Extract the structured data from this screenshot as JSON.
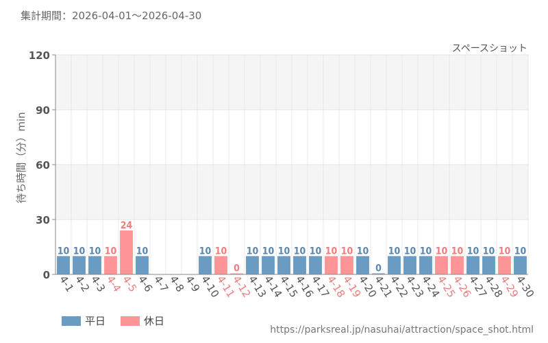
{
  "period": "集計期間：2026-04-01～2026-04-30",
  "attraction": "スペースショット",
  "source_url": "https://parksreal.jp/nasuhai/attraction/space_shot.html",
  "colors": {
    "weekday": "#6a9bc3",
    "holiday": "#fd9597",
    "holiday_text": "#f07c7e",
    "weekday_text": "#5b86ad"
  },
  "legend": {
    "weekday_label": "平日",
    "holiday_label": "休日"
  },
  "chart_data": {
    "type": "bar",
    "title": "",
    "xlabel": "",
    "ylabel": "待ち時間（分）min",
    "ylim": [
      0,
      120
    ],
    "yticks": [
      0,
      30,
      60,
      90,
      120
    ],
    "grid": true,
    "legend_position": "bottom-left",
    "categories": [
      "4-1",
      "4-2",
      "4-3",
      "4-4",
      "4-5",
      "4-6",
      "4-7",
      "4-8",
      "4-9",
      "4-10",
      "4-11",
      "4-12",
      "4-13",
      "4-14",
      "4-15",
      "4-16",
      "4-17",
      "4-18",
      "4-19",
      "4-20",
      "4-21",
      "4-22",
      "4-23",
      "4-24",
      "4-25",
      "4-26",
      "4-27",
      "4-28",
      "4-29",
      "4-30"
    ],
    "values": [
      10,
      10,
      10,
      10,
      24,
      10,
      null,
      null,
      null,
      10,
      10,
      0,
      10,
      10,
      10,
      10,
      10,
      10,
      10,
      10,
      0,
      10,
      10,
      10,
      10,
      10,
      10,
      10,
      10,
      10
    ],
    "day_type": [
      "weekday",
      "weekday",
      "weekday",
      "holiday",
      "holiday",
      "weekday",
      "weekday",
      "weekday",
      "weekday",
      "weekday",
      "holiday",
      "holiday",
      "weekday",
      "weekday",
      "weekday",
      "weekday",
      "weekday",
      "holiday",
      "holiday",
      "weekday",
      "weekday",
      "weekday",
      "weekday",
      "weekday",
      "holiday",
      "holiday",
      "weekday",
      "weekday",
      "holiday",
      "weekday"
    ]
  }
}
